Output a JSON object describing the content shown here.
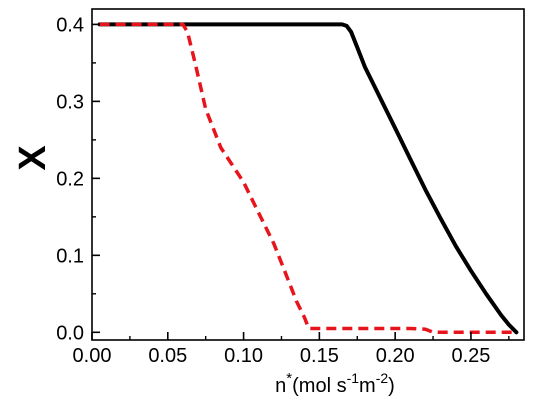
{
  "chart_data": {
    "type": "line",
    "title": "",
    "xlabel": {
      "base": "n",
      "sup": "*",
      "unit_parts": [
        "(mol s",
        "-1",
        "m",
        "-2",
        ")"
      ]
    },
    "ylabel": "X",
    "xlim": [
      0.0,
      0.285
    ],
    "ylim": [
      -0.01,
      0.42
    ],
    "xticks": [
      0.0,
      0.05,
      0.1,
      0.15,
      0.2,
      0.25
    ],
    "xtick_labels": [
      "0.00",
      "0.05",
      "0.10",
      "0.15",
      "0.20",
      "0.25"
    ],
    "yticks": [
      0.0,
      0.1,
      0.2,
      0.3,
      0.4
    ],
    "ytick_labels": [
      "0.0",
      "0.1",
      "0.2",
      "0.3",
      "0.4"
    ],
    "grid": false,
    "legend": false,
    "series": [
      {
        "color": "#000000",
        "style": "solid",
        "x": [
          0.005,
          0.05,
          0.1,
          0.15,
          0.165,
          0.168,
          0.171,
          0.175,
          0.18,
          0.19,
          0.2,
          0.21,
          0.22,
          0.23,
          0.24,
          0.25,
          0.26,
          0.27,
          0.275,
          0.28
        ],
        "y": [
          0.4,
          0.4,
          0.4,
          0.4,
          0.4,
          0.398,
          0.39,
          0.37,
          0.345,
          0.305,
          0.265,
          0.225,
          0.185,
          0.148,
          0.112,
          0.08,
          0.05,
          0.022,
          0.01,
          0.0
        ]
      },
      {
        "color": "#e8141c",
        "style": "dashed",
        "x": [
          0.005,
          0.03,
          0.06,
          0.063,
          0.068,
          0.075,
          0.085,
          0.1,
          0.11,
          0.12,
          0.125,
          0.13,
          0.135,
          0.14,
          0.143,
          0.16,
          0.18,
          0.2,
          0.21,
          0.22,
          0.225,
          0.25,
          0.28
        ],
        "y": [
          0.4,
          0.4,
          0.4,
          0.39,
          0.35,
          0.29,
          0.24,
          0.195,
          0.155,
          0.115,
          0.09,
          0.065,
          0.04,
          0.02,
          0.005,
          0.005,
          0.005,
          0.005,
          0.005,
          0.004,
          0.0,
          0.0,
          0.0
        ]
      }
    ]
  }
}
